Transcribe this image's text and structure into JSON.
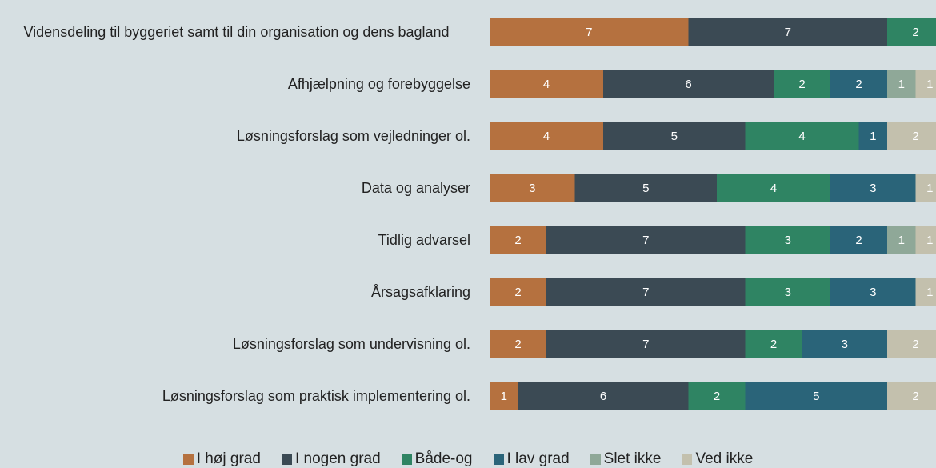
{
  "chart_data": {
    "type": "stacked_barh",
    "categories": [
      "Vidensdeling til byggeriet samt til din organisation og dens bagland",
      "Afhjælpning og forebyggelse",
      "Løsningsforslag som vejledninger ol.",
      "Data og analyser",
      "Tidlig advarsel",
      "Årsagsafklaring",
      "Løsningsforslag som undervisning ol.",
      "Løsningsforslag som praktisk implementering ol."
    ],
    "series": [
      {
        "name": "I høj grad",
        "color": "#b5713f",
        "values": [
          7,
          4,
          4,
          3,
          2,
          2,
          2,
          1
        ]
      },
      {
        "name": "I nogen grad",
        "color": "#3b4a54",
        "values": [
          7,
          6,
          5,
          5,
          7,
          7,
          7,
          6
        ]
      },
      {
        "name": "Både-og",
        "color": "#2f8463",
        "values": [
          2,
          2,
          4,
          4,
          3,
          3,
          2,
          2
        ]
      },
      {
        "name": "I lav grad",
        "color": "#2a6479",
        "values": [
          null,
          2,
          1,
          3,
          2,
          3,
          3,
          5
        ]
      },
      {
        "name": "Slet ikke",
        "color": "#8fa898",
        "values": [
          null,
          1,
          null,
          null,
          1,
          null,
          null,
          null
        ]
      },
      {
        "name": "Ved ikke",
        "color": "#c3c0ad",
        "values": [
          null,
          1,
          2,
          1,
          1,
          1,
          2,
          2
        ]
      }
    ],
    "xlim": [
      0,
      16
    ],
    "legend": "bottom"
  }
}
